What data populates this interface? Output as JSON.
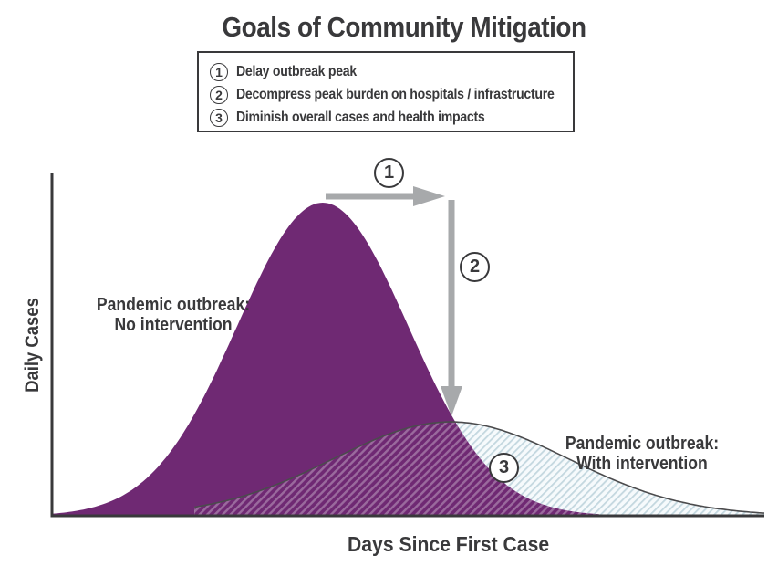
{
  "legend": {
    "goals": [
      {
        "num": "1",
        "label": "Delay outbreak peak"
      },
      {
        "num": "2",
        "label": "Decompress peak burden on hospitals / infrastructure"
      },
      {
        "num": "3",
        "label": "Diminish overall cases and health impacts"
      }
    ]
  },
  "chart_data": {
    "type": "area",
    "title": "Goals of Community Mitigation",
    "xlabel": "Days Since First Case",
    "ylabel": "Daily Cases",
    "axis_ticks": "none",
    "grid": false,
    "x_range_units": [
      0,
      100
    ],
    "y_range_units": [
      0,
      1.1
    ],
    "series": [
      {
        "name": "Pandemic outbreak: No intervention",
        "label_line1": "Pandemic outbreak:",
        "label_line2": "No intervention",
        "shape": "gaussian",
        "mu": 38,
        "sigma": 12,
        "peak": 1.0,
        "domain": [
          0,
          77
        ],
        "style": "solid",
        "fill": "#6F2973"
      },
      {
        "name": "Pandemic outbreak: With intervention",
        "label_line1": "Pandemic outbreak:",
        "label_line2": "With intervention",
        "shape": "gaussian",
        "mu": 56,
        "sigma": 16.5,
        "peak": 0.3,
        "domain": [
          20,
          100
        ],
        "style": "hatched",
        "fill_tint": "#F6FAFC",
        "hatch_color": "#C3D7DF",
        "outline": "#4B4B4D"
      }
    ],
    "annotations": [
      {
        "num": "1",
        "type": "arrow-right-from-peak"
      },
      {
        "num": "2",
        "type": "arrow-down-to-flattened-peak"
      },
      {
        "num": "3",
        "type": "circled-label-on-flattened-area"
      }
    ],
    "colors": {
      "no_intervention_fill": "#6F2973",
      "overlap_hatch": "rgba(255,255,255,0.3)",
      "arrow": "#A7A9AB",
      "axis": "#39393B",
      "text": "#39393B"
    }
  }
}
